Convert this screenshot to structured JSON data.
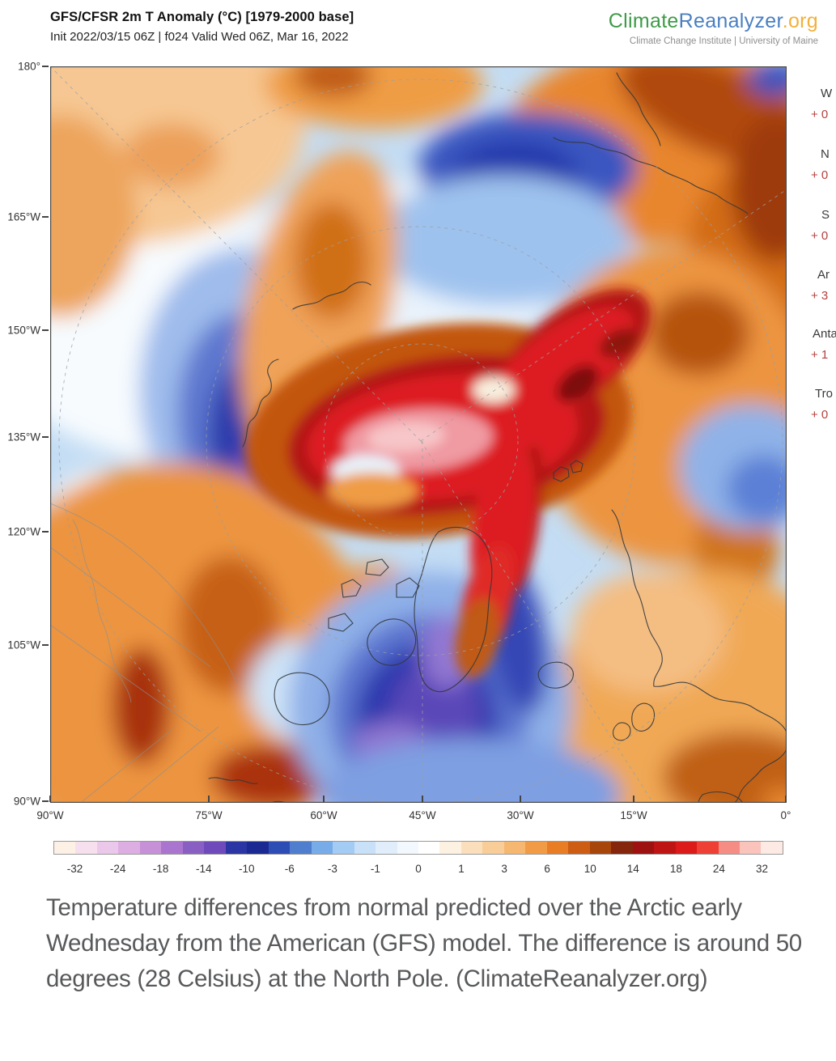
{
  "header": {
    "title": "GFS/CFSR 2m T Anomaly (°C) [1979-2000 base]",
    "init_line": "Init 2022/03/15 06Z | f024 Valid Wed 06Z, Mar 16, 2022"
  },
  "brand": {
    "part1": "Climate",
    "part2": "Reanalyzer",
    "part3": ".org",
    "subtitle": "Climate Change Institute | University of Maine",
    "colors": {
      "part1": "#3f9b48",
      "part2": "#4a7fc1",
      "part3": "#f2b13c"
    }
  },
  "map": {
    "projection": "polar",
    "left_axis": [
      {
        "label": "180°",
        "pos": 0
      },
      {
        "label": "165°W",
        "pos": 186
      },
      {
        "label": "150°W",
        "pos": 326
      },
      {
        "label": "135°W",
        "pos": 458
      },
      {
        "label": "120°W",
        "pos": 575
      },
      {
        "label": "105°W",
        "pos": 715
      },
      {
        "label": "90°W",
        "pos": 908
      }
    ],
    "bottom_axis": [
      {
        "label": "90°W",
        "pos": 0
      },
      {
        "label": "75°W",
        "pos": 196
      },
      {
        "label": "60°W",
        "pos": 338
      },
      {
        "label": "45°W",
        "pos": 460
      },
      {
        "label": "30°W",
        "pos": 581
      },
      {
        "label": "15°W",
        "pos": 721
      },
      {
        "label": "0°",
        "pos": 909
      }
    ]
  },
  "right_panel": {
    "items": [
      {
        "label": "W",
        "value": "+ 0"
      },
      {
        "label": "N",
        "value": "+ 0"
      },
      {
        "label": "S",
        "value": "+ 0"
      },
      {
        "label": "Ar",
        "value": "+ 3"
      },
      {
        "label": "Anta",
        "value": "+ 1"
      },
      {
        "label": "Tro",
        "value": "+ 0"
      }
    ]
  },
  "colorbar": {
    "unit": "°C",
    "labels": [
      "-32",
      "-24",
      "-18",
      "-14",
      "-10",
      "-6",
      "-3",
      "-1",
      "0",
      "1",
      "3",
      "6",
      "10",
      "14",
      "18",
      "24",
      "32"
    ],
    "colors": [
      "#fdf0e5",
      "#f7e0ee",
      "#ebc8ea",
      "#dcaee2",
      "#c791d8",
      "#aa75ce",
      "#8a5fc4",
      "#6f4aba",
      "#2c35a4",
      "#1b2a92",
      "#2e4db4",
      "#4f7ecf",
      "#77ace9",
      "#a3cbf4",
      "#c8e1f9",
      "#e0eefb",
      "#f2f8fe",
      "#ffffff",
      "#fdf2e2",
      "#fbdfbc",
      "#f9cd98",
      "#f6b770",
      "#f19b46",
      "#e87d26",
      "#cd5d12",
      "#a8450a",
      "#84250c",
      "#9d1111",
      "#bf1414",
      "#dd1a1a",
      "#ef4036",
      "#f58d84",
      "#fac4bc",
      "#fdeae4"
    ]
  },
  "caption": "Temperature differences from normal predicted over the Arctic early Wednesday from the American (GFS) model. The difference is around 50 degrees (28 Celsius) at the North Pole. (ClimateReanalyzer.org)"
}
